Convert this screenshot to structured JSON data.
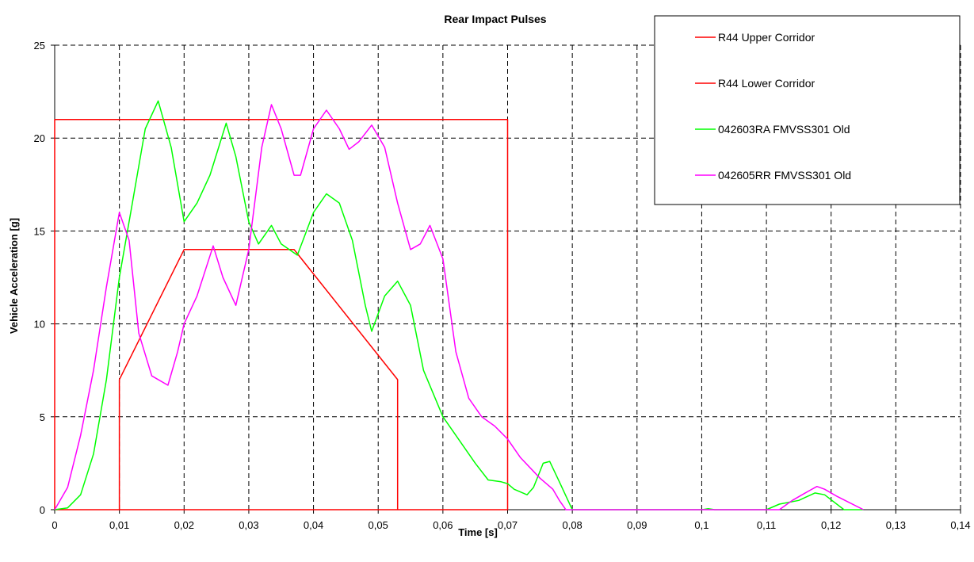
{
  "chart_data": {
    "type": "line",
    "title": "Rear Impact Pulses",
    "xlabel": "Time [s]",
    "ylabel": "Vehicle Acceleration [g]",
    "xlim": [
      0,
      0.14
    ],
    "ylim": [
      0,
      25
    ],
    "x_ticks": [
      "0",
      "0,01",
      "0,02",
      "0,03",
      "0,04",
      "0,05",
      "0,06",
      "0,07",
      "0,08",
      "0,09",
      "0,1",
      "0,11",
      "0,12",
      "0,13",
      "0,14"
    ],
    "y_ticks": [
      "0",
      "5",
      "10",
      "15",
      "20",
      "25"
    ],
    "grid": true,
    "legend_position": "top-right",
    "series": [
      {
        "name": "R44 Upper Corridor",
        "color": "#ff0000",
        "points": [
          [
            0,
            0
          ],
          [
            0,
            21
          ],
          [
            0.07,
            21
          ],
          [
            0.07,
            0
          ],
          [
            0,
            0
          ]
        ]
      },
      {
        "name": "R44 Lower Corridor",
        "color": "#ff0000",
        "points": [
          [
            0.01,
            0
          ],
          [
            0.01,
            7
          ],
          [
            0.02,
            14
          ],
          [
            0.037,
            14
          ],
          [
            0.053,
            7
          ],
          [
            0.053,
            0
          ]
        ]
      },
      {
        "name": "042603RA FMVSS301 Old",
        "color": "#00ff00",
        "points": [
          [
            0,
            0
          ],
          [
            0.002,
            0.1
          ],
          [
            0.004,
            0.8
          ],
          [
            0.006,
            3
          ],
          [
            0.008,
            7
          ],
          [
            0.01,
            12.5
          ],
          [
            0.012,
            16.5
          ],
          [
            0.014,
            20.5
          ],
          [
            0.016,
            22
          ],
          [
            0.018,
            19.5
          ],
          [
            0.02,
            15.5
          ],
          [
            0.022,
            16.5
          ],
          [
            0.024,
            18
          ],
          [
            0.0265,
            20.8
          ],
          [
            0.028,
            19
          ],
          [
            0.03,
            15.5
          ],
          [
            0.0315,
            14.3
          ],
          [
            0.0335,
            15.3
          ],
          [
            0.035,
            14.3
          ],
          [
            0.0375,
            13.7
          ],
          [
            0.04,
            16
          ],
          [
            0.042,
            17
          ],
          [
            0.044,
            16.5
          ],
          [
            0.046,
            14.5
          ],
          [
            0.048,
            11
          ],
          [
            0.049,
            9.6
          ],
          [
            0.051,
            11.5
          ],
          [
            0.053,
            12.3
          ],
          [
            0.055,
            11
          ],
          [
            0.057,
            7.5
          ],
          [
            0.06,
            5
          ],
          [
            0.062,
            4
          ],
          [
            0.065,
            2.5
          ],
          [
            0.067,
            1.6
          ],
          [
            0.069,
            1.5
          ],
          [
            0.07,
            1.4
          ],
          [
            0.071,
            1.1
          ],
          [
            0.073,
            0.8
          ],
          [
            0.074,
            1.2
          ],
          [
            0.0755,
            2.5
          ],
          [
            0.0765,
            2.6
          ],
          [
            0.078,
            1.5
          ],
          [
            0.08,
            0
          ],
          [
            0.1,
            0
          ],
          [
            0.101,
            0.05
          ],
          [
            0.102,
            0
          ],
          [
            0.11,
            0
          ],
          [
            0.112,
            0.3
          ],
          [
            0.115,
            0.5
          ],
          [
            0.1175,
            0.9
          ],
          [
            0.119,
            0.8
          ],
          [
            0.122,
            0
          ],
          [
            0.125,
            0
          ]
        ]
      },
      {
        "name": "042605RR FMVSS301 Old",
        "color": "#ff00ff",
        "points": [
          [
            0,
            0
          ],
          [
            0.002,
            1.2
          ],
          [
            0.004,
            4
          ],
          [
            0.006,
            7.5
          ],
          [
            0.008,
            12
          ],
          [
            0.01,
            16
          ],
          [
            0.0115,
            14.5
          ],
          [
            0.013,
            9.5
          ],
          [
            0.015,
            7.2
          ],
          [
            0.0175,
            6.7
          ],
          [
            0.019,
            8.5
          ],
          [
            0.02,
            10
          ],
          [
            0.022,
            11.5
          ],
          [
            0.0245,
            14.2
          ],
          [
            0.026,
            12.5
          ],
          [
            0.028,
            11
          ],
          [
            0.03,
            14
          ],
          [
            0.032,
            19.5
          ],
          [
            0.0335,
            21.8
          ],
          [
            0.035,
            20.5
          ],
          [
            0.037,
            18
          ],
          [
            0.038,
            18
          ],
          [
            0.04,
            20.5
          ],
          [
            0.042,
            21.5
          ],
          [
            0.044,
            20.5
          ],
          [
            0.0455,
            19.4
          ],
          [
            0.047,
            19.8
          ],
          [
            0.049,
            20.7
          ],
          [
            0.051,
            19.5
          ],
          [
            0.053,
            16.5
          ],
          [
            0.055,
            14
          ],
          [
            0.0565,
            14.3
          ],
          [
            0.058,
            15.3
          ],
          [
            0.06,
            13.5
          ],
          [
            0.062,
            8.5
          ],
          [
            0.064,
            6
          ],
          [
            0.066,
            5
          ],
          [
            0.068,
            4.5
          ],
          [
            0.07,
            3.8
          ],
          [
            0.072,
            2.8
          ],
          [
            0.075,
            1.7
          ],
          [
            0.077,
            1.1
          ],
          [
            0.078,
            0.5
          ],
          [
            0.079,
            0
          ],
          [
            0.112,
            0
          ],
          [
            0.114,
            0.5
          ],
          [
            0.1165,
            1
          ],
          [
            0.1178,
            1.25
          ],
          [
            0.119,
            1.1
          ],
          [
            0.121,
            0.7
          ],
          [
            0.125,
            0
          ]
        ]
      }
    ]
  }
}
